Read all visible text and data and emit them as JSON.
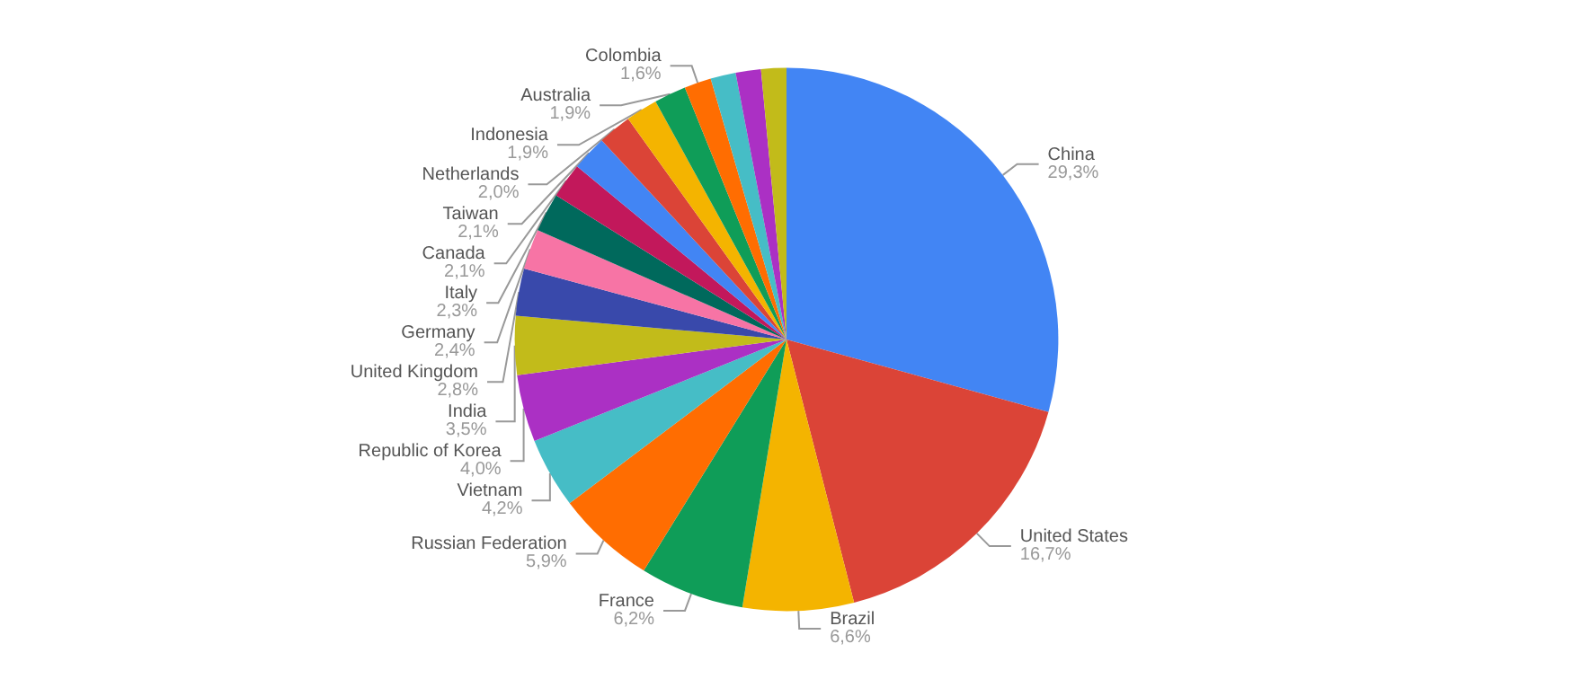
{
  "chart_data": {
    "type": "pie",
    "categories": [
      "China",
      "United States",
      "Brazil",
      "France",
      "Russian Federation",
      "Vietnam",
      "Republic of Korea",
      "India",
      "United Kingdom",
      "Germany",
      "Italy",
      "Canada",
      "Taiwan",
      "Netherlands",
      "Indonesia",
      "Australia",
      "Colombia",
      null,
      null,
      null
    ],
    "values": [
      29.3,
      16.7,
      6.6,
      6.2,
      5.9,
      4.2,
      4.0,
      3.5,
      2.8,
      2.4,
      2.3,
      2.1,
      2.1,
      2.0,
      1.9,
      1.9,
      1.6,
      1.5,
      1.5,
      1.5
    ],
    "value_labels": [
      "29,3%",
      "16,7%",
      "6,6%",
      "6,2%",
      "5,9%",
      "4,2%",
      "4,0%",
      "3,5%",
      "2,8%",
      "2,4%",
      "2,3%",
      "2,1%",
      "2,1%",
      "2,0%",
      "1,9%",
      "1,9%",
      "1,6%",
      null,
      null,
      null
    ],
    "colors": [
      "#4285f4",
      "#db4437",
      "#f4b400",
      "#0f9d58",
      "#ff6d01",
      "#46bdc6",
      "#ab30c4",
      "#c2bb1a",
      "#3949ab",
      "#f774a5",
      "#00695c",
      "#c2185b",
      "#4285f4",
      "#db4437",
      "#f4b400",
      "#0f9d58",
      "#ff6d01",
      "#46bdc6",
      "#ab30c4",
      "#c2bb1a"
    ],
    "legend": false
  }
}
